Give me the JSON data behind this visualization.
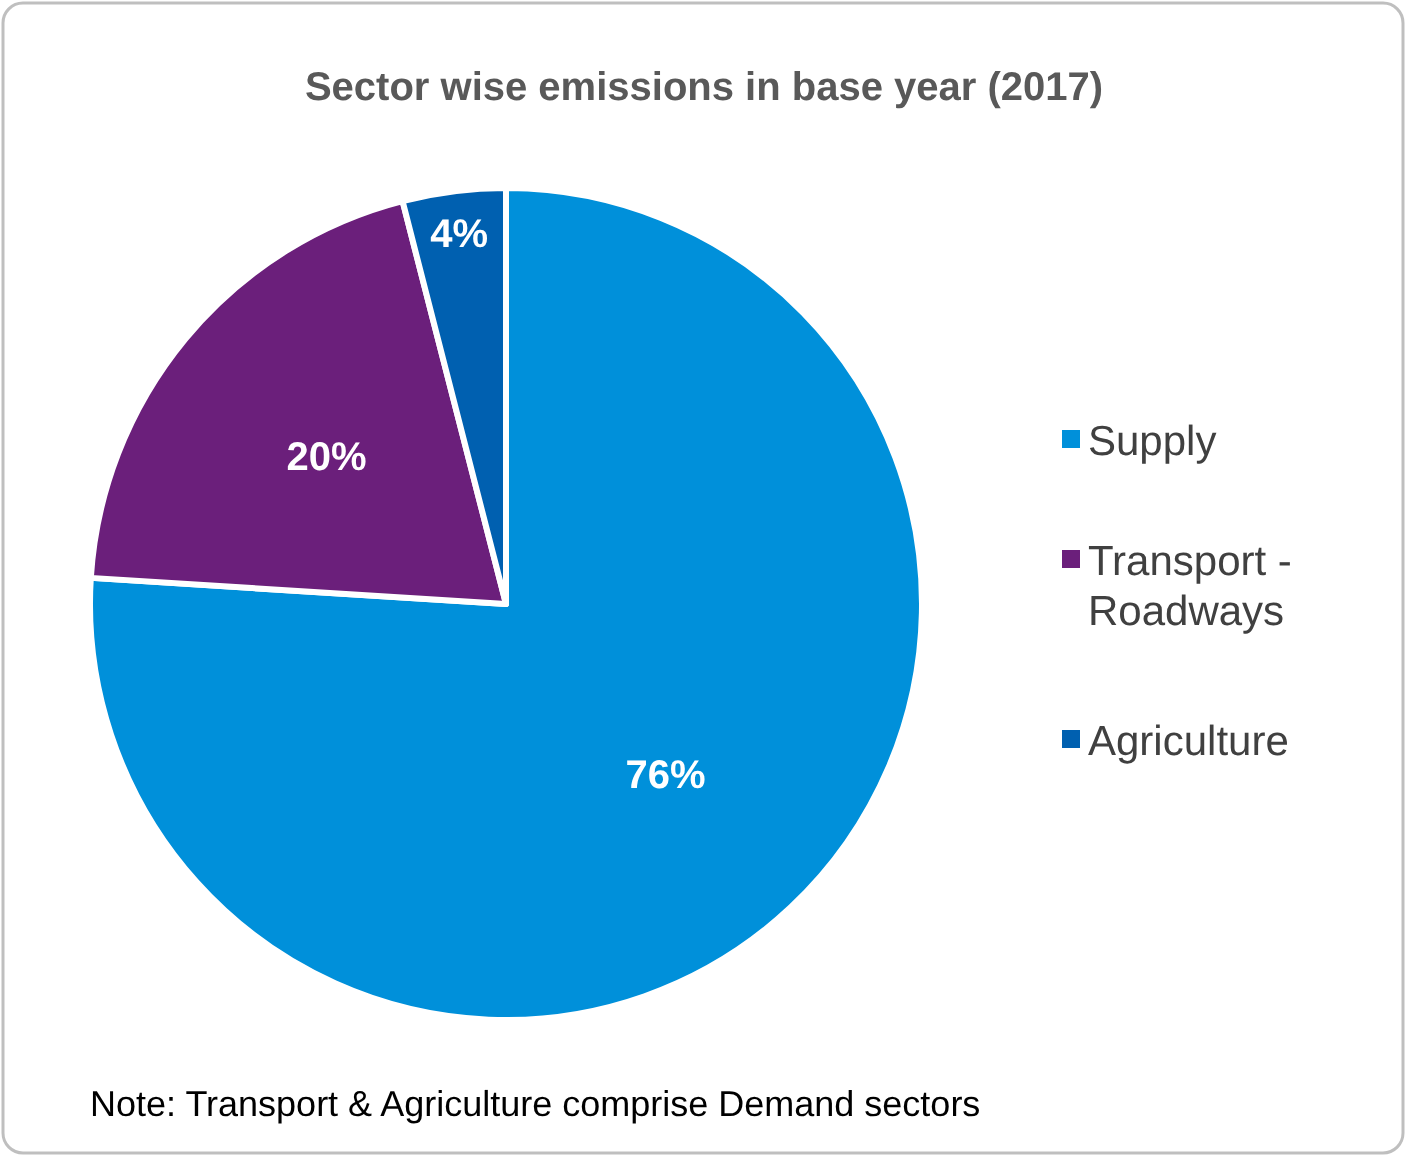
{
  "chart_data": {
    "type": "pie",
    "title": "Sector wise emissions in base year (2017)",
    "categories": [
      "Supply",
      "Transport - Roadways",
      "Agriculture"
    ],
    "values": [
      76,
      20,
      4
    ],
    "colors": [
      "#0090da",
      "#6b1f7b",
      "#0060b0"
    ],
    "value_labels": [
      "76%",
      "20%",
      "4%"
    ],
    "legend": "right",
    "annotations": [
      "Note: Transport & Agriculture comprise Demand sectors"
    ]
  }
}
